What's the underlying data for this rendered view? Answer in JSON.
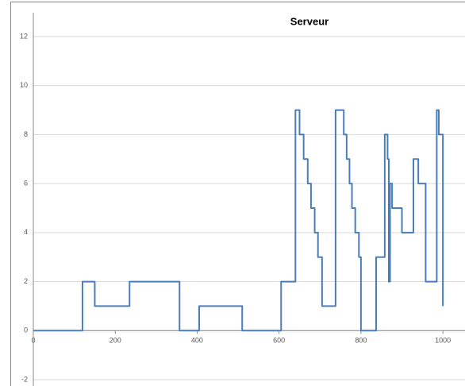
{
  "chart_data": {
    "type": "line",
    "title": "Serveur",
    "x": [
      0,
      120,
      120,
      150,
      150,
      235,
      235,
      357,
      357,
      405,
      405,
      510,
      510,
      605,
      605,
      640,
      640,
      650,
      650,
      660,
      660,
      670,
      670,
      678,
      678,
      687,
      687,
      695,
      695,
      705,
      705,
      738,
      738,
      758,
      758,
      765,
      765,
      772,
      772,
      778,
      778,
      786,
      786,
      795,
      795,
      800,
      800,
      837,
      837,
      858,
      858,
      865,
      865,
      868,
      868,
      871,
      871,
      876,
      876,
      900,
      900,
      928,
      928,
      940,
      940,
      958,
      958,
      985,
      985,
      990,
      990,
      1000,
      1000
    ],
    "series": [
      {
        "color": "#4a7ebb",
        "values": [
          0,
          0,
          2,
          2,
          1,
          1,
          2,
          2,
          0,
          0,
          1,
          1,
          0,
          0,
          2,
          2,
          9,
          9,
          8,
          8,
          7,
          7,
          6,
          6,
          5,
          5,
          4,
          4,
          3,
          3,
          1,
          1,
          9,
          9,
          8,
          8,
          7,
          7,
          6,
          6,
          5,
          5,
          4,
          4,
          3,
          3,
          0,
          0,
          3,
          3,
          8,
          8,
          7,
          7,
          2,
          2,
          6,
          6,
          5,
          5,
          4,
          4,
          7,
          7,
          6,
          6,
          2,
          2,
          9,
          9,
          8,
          8,
          1
        ]
      }
    ],
    "xlim": [
      0,
      1054
    ],
    "xticks": [
      0,
      200,
      400,
      600,
      800,
      1000
    ],
    "ylim": [
      -2,
      12
    ],
    "yticks": [
      -2,
      0,
      2,
      4,
      6,
      8,
      10,
      12
    ],
    "grid": true
  }
}
